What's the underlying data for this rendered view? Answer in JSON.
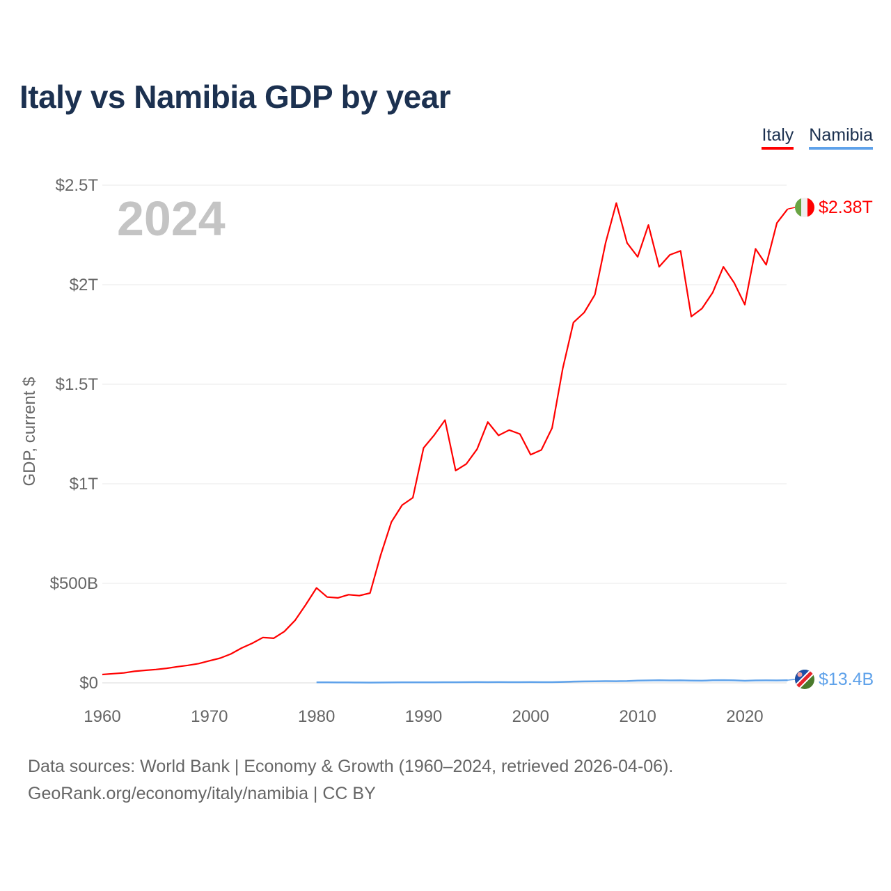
{
  "title": "Italy vs Namibia GDP by year",
  "footer": {
    "line1": "Data sources: World Bank | Economy & Growth (1960–2024, retrieved 2026-04-06).",
    "line2": "GeoRank.org/economy/italy/namibia | CC BY"
  },
  "chart_data": {
    "type": "line",
    "title": "Italy vs Namibia GDP by year",
    "ylabel": "GDP, current $",
    "xlabel": "",
    "year_label": "2024",
    "xlim": [
      1960,
      2024
    ],
    "ylim": [
      0,
      2.5
    ],
    "y_unit": "trillion USD",
    "grid": true,
    "legend_position": "top-right",
    "x_ticks": [
      1960,
      1970,
      1980,
      1990,
      2000,
      2010,
      2020
    ],
    "x_tick_labels": [
      "1960",
      "1970",
      "1980",
      "1990",
      "2000",
      "2010",
      "2020"
    ],
    "y_ticks": [
      0,
      0.5,
      1,
      1.5,
      2,
      2.5
    ],
    "y_tick_labels": [
      "$0",
      "$500B",
      "$1T",
      "$1.5T",
      "$2T",
      "$2.5T"
    ],
    "series": [
      {
        "name": "Italy",
        "color": "#ff0000",
        "end_label": "$2.38T",
        "flag": "italy-flag",
        "start_year": 1960,
        "values": [
          0.042,
          0.046,
          0.05,
          0.058,
          0.063,
          0.067,
          0.073,
          0.081,
          0.088,
          0.097,
          0.111,
          0.124,
          0.145,
          0.175,
          0.199,
          0.228,
          0.224,
          0.258,
          0.314,
          0.393,
          0.477,
          0.431,
          0.427,
          0.443,
          0.438,
          0.451,
          0.643,
          0.808,
          0.893,
          0.93,
          1.18,
          1.245,
          1.32,
          1.066,
          1.1,
          1.174,
          1.31,
          1.243,
          1.27,
          1.25,
          1.146,
          1.17,
          1.28,
          1.58,
          1.81,
          1.86,
          1.95,
          2.21,
          2.41,
          2.21,
          2.14,
          2.3,
          2.09,
          2.15,
          2.17,
          1.84,
          1.88,
          1.96,
          2.09,
          2.01,
          1.9,
          2.18,
          2.1,
          2.31,
          2.38
        ]
      },
      {
        "name": "Namibia",
        "color": "#5fa2ea",
        "end_label": "$13.4B",
        "flag": "namibia-flag",
        "start_year": 1980,
        "values": [
          0.0023,
          0.0025,
          0.0022,
          0.0021,
          0.0018,
          0.0015,
          0.0017,
          0.0021,
          0.0024,
          0.0024,
          0.0026,
          0.0028,
          0.0032,
          0.003,
          0.0034,
          0.0037,
          0.0036,
          0.0038,
          0.0035,
          0.0035,
          0.0039,
          0.0035,
          0.0034,
          0.005,
          0.0066,
          0.0073,
          0.0079,
          0.0088,
          0.0085,
          0.009,
          0.0113,
          0.0124,
          0.013,
          0.0124,
          0.0125,
          0.0115,
          0.0109,
          0.0131,
          0.0137,
          0.0125,
          0.0106,
          0.0123,
          0.0126,
          0.0124,
          0.0134
        ]
      }
    ]
  }
}
